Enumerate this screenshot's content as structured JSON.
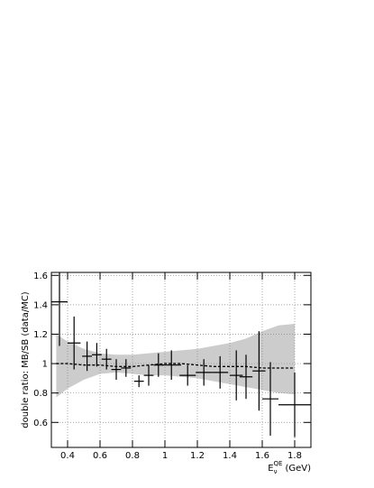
{
  "chart_data": {
    "type": "errorbar",
    "x_label": {
      "base": "E",
      "sub": "ν",
      "sup": "QE",
      "unit": "(GeV)"
    },
    "y_label": "double ratio: MB/SB (data/MC)",
    "xlim": [
      0.3,
      1.9
    ],
    "ylim": [
      0.43,
      1.62
    ],
    "xticks": [
      0.4,
      0.6,
      0.8,
      1,
      1.2,
      1.4,
      1.6,
      1.8
    ],
    "yticks": [
      0.6,
      0.8,
      1,
      1.2,
      1.4,
      1.6
    ],
    "grid": true,
    "band": {
      "color": "#cccccc",
      "x": [
        0.33,
        0.4,
        0.5,
        0.6,
        0.7,
        0.8,
        0.9,
        1.0,
        1.1,
        1.2,
        1.3,
        1.4,
        1.5,
        1.6,
        1.7,
        1.8
      ],
      "upper": [
        1.2,
        1.15,
        1.1,
        1.07,
        1.06,
        1.06,
        1.07,
        1.08,
        1.09,
        1.1,
        1.12,
        1.14,
        1.17,
        1.22,
        1.26,
        1.27
      ],
      "lower": [
        0.77,
        0.83,
        0.89,
        0.93,
        0.94,
        0.93,
        0.92,
        0.92,
        0.91,
        0.9,
        0.88,
        0.86,
        0.84,
        0.82,
        0.8,
        0.79
      ]
    },
    "prediction": {
      "color": "#000000",
      "x": [
        0.33,
        0.4,
        0.5,
        0.6,
        0.7,
        0.8,
        0.9,
        1.0,
        1.1,
        1.2,
        1.3,
        1.4,
        1.5,
        1.6,
        1.7,
        1.8
      ],
      "values": [
        1.0,
        1.0,
        0.99,
        0.99,
        0.98,
        0.98,
        0.99,
        1.0,
        1.0,
        0.99,
        0.98,
        0.98,
        0.98,
        0.97,
        0.97,
        0.97
      ]
    },
    "points": {
      "color": "#000000",
      "x": [
        0.35,
        0.44,
        0.52,
        0.58,
        0.64,
        0.7,
        0.76,
        0.84,
        0.9,
        0.96,
        1.04,
        1.14,
        1.24,
        1.34,
        1.44,
        1.5,
        1.58,
        1.65,
        1.8
      ],
      "x_err": [
        0.05,
        0.04,
        0.03,
        0.03,
        0.03,
        0.03,
        0.03,
        0.03,
        0.03,
        0.03,
        0.06,
        0.05,
        0.05,
        0.05,
        0.04,
        0.04,
        0.04,
        0.05,
        0.1
      ],
      "values": [
        1.42,
        1.14,
        1.05,
        1.06,
        1.03,
        0.96,
        0.97,
        0.88,
        0.92,
        0.99,
        0.99,
        0.92,
        0.94,
        0.94,
        0.92,
        0.91,
        0.95,
        0.76,
        0.72
      ],
      "errors": [
        0.3,
        0.18,
        0.1,
        0.08,
        0.07,
        0.07,
        0.06,
        0.04,
        0.07,
        0.08,
        0.1,
        0.07,
        0.09,
        0.11,
        0.17,
        0.15,
        0.27,
        0.25,
        0.22
      ]
    }
  }
}
